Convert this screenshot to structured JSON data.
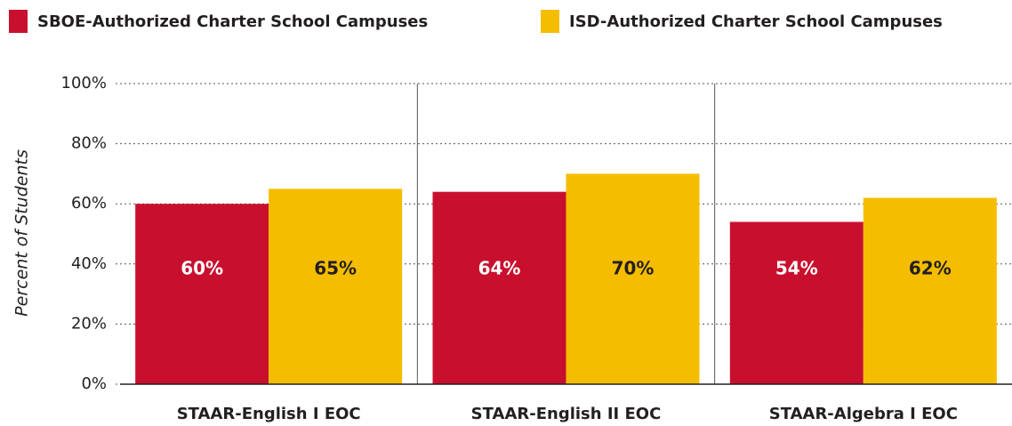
{
  "chart_data": {
    "type": "bar",
    "y_label": "Percent of Students",
    "categories": [
      "STAAR-English I EOC",
      "STAAR-English II EOC",
      "STAAR-Algebra I EOC"
    ],
    "series": [
      {
        "name": "SBOE-Authorized Charter School Campuses",
        "color": "#c8102e",
        "values": [
          60,
          64,
          54
        ],
        "value_labels": [
          "60%",
          "64%",
          "54%"
        ],
        "label_color": "#ffffff"
      },
      {
        "name": "ISD-Authorized Charter School Campuses",
        "color": "#f5bd00",
        "values": [
          65,
          70,
          62
        ],
        "value_labels": [
          "65%",
          "70%",
          "62%"
        ],
        "label_color": "#231f20"
      }
    ],
    "ylim": [
      0,
      100
    ],
    "yticks": [
      {
        "value": 0,
        "label": "0%"
      },
      {
        "value": 20,
        "label": "20%"
      },
      {
        "value": 40,
        "label": "40%"
      },
      {
        "value": 60,
        "label": "60%"
      },
      {
        "value": 80,
        "label": "80%"
      },
      {
        "value": 100,
        "label": "100%"
      }
    ],
    "grid": true
  }
}
